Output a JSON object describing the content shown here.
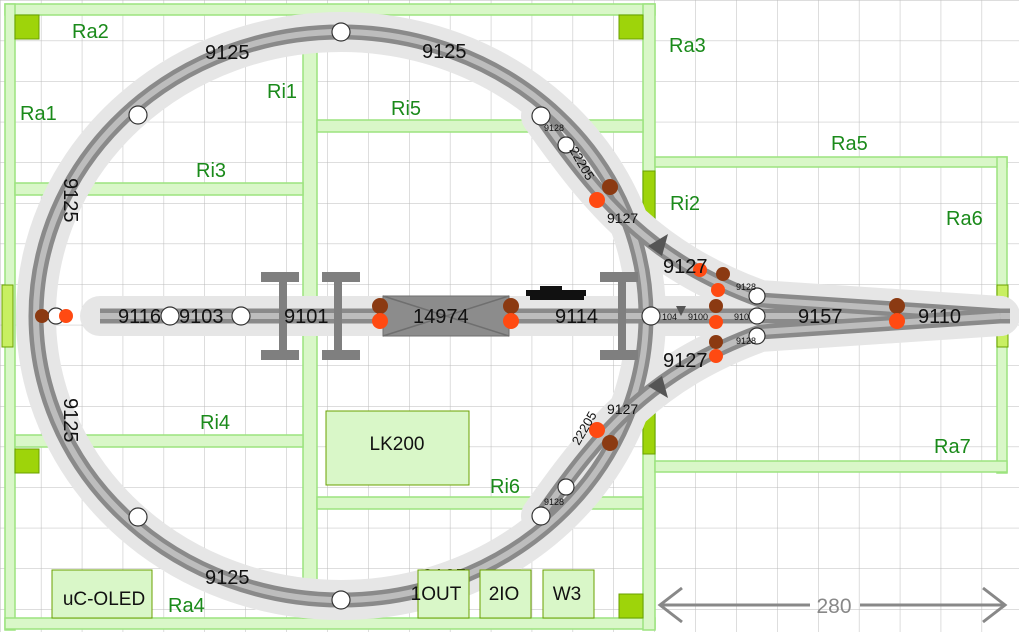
{
  "colors": {
    "board_fill": "#d9f7c8",
    "board_border": "#9ce37f",
    "label_green": "#1a8a1a",
    "track_halo": "#e6e6e6",
    "track_rail": "#8a8a8a",
    "track_core": "#bdbdbd",
    "signal_dark": "#8b3a12",
    "signal_red": "#ff4a12",
    "connector_green": "#9ed40a",
    "grid": "#bbbbbb",
    "dimension": "#888888"
  },
  "board_labels": {
    "ra1": "Ra1",
    "ra2": "Ra2",
    "ra3": "Ra3",
    "ra4": "Ra4",
    "ra5": "Ra5",
    "ra6": "Ra6",
    "ra7": "Ra7",
    "ri1": "Ri1",
    "ri2": "Ri2",
    "ri3": "Ri3",
    "ri4": "Ri4",
    "ri5": "Ri5",
    "ri6": "Ri6"
  },
  "track_labels": {
    "curve_top_left": "9125",
    "curve_top_right": "9125",
    "curve_left_upper": "9125",
    "curve_left_lower": "9125",
    "curve_bottom_left": "9125",
    "curve_bottom_right": "9125",
    "straight_9116": "9116",
    "straight_9103": "9103",
    "straight_9101": "9101",
    "bridge_14974": "14974",
    "straight_9114": "9114",
    "curve_upper_9127": "9127",
    "curve_lower_9127": "9127",
    "turnout_upper_9127": "9127",
    "turnout_lower_9127": "9127",
    "flex_upper_22205": "22205",
    "flex_lower_22205": "22205",
    "straight_9157": "9157",
    "straight_9110": "9110",
    "small_9128_top": "9128",
    "small_9128_bottom": "9128",
    "small_9128_right": "9128",
    "small_9128_right2": "9128",
    "small_104": "104",
    "small_9100": "9100",
    "small_910": "910",
    "bottom_9125_partial": "9125"
  },
  "modules": {
    "lk200": "LK200",
    "uc_oled": "uC-OLED",
    "out1": "1OUT",
    "io2": "2IO",
    "w3": "W3"
  },
  "dimension": {
    "value": "280"
  }
}
